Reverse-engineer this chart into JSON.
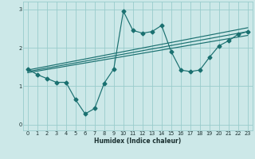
{
  "xlabel": "Humidex (Indice chaleur)",
  "background_color": "#cce8e8",
  "grid_color": "#99cccc",
  "line_color": "#1a7070",
  "xlim": [
    -0.5,
    23.5
  ],
  "ylim": [
    -0.15,
    3.2
  ],
  "xticks": [
    0,
    1,
    2,
    3,
    4,
    5,
    6,
    7,
    8,
    9,
    10,
    11,
    12,
    13,
    14,
    15,
    16,
    17,
    18,
    19,
    20,
    21,
    22,
    23
  ],
  "yticks": [
    0,
    1,
    2,
    3
  ],
  "line1_x": [
    0,
    1,
    2,
    3,
    4,
    5,
    6,
    7,
    8,
    9,
    10,
    11,
    12,
    13,
    14,
    15,
    16,
    17,
    18,
    19,
    20,
    21,
    22,
    23
  ],
  "line1_y": [
    1.45,
    1.3,
    1.2,
    1.1,
    1.1,
    0.65,
    0.28,
    0.42,
    1.08,
    1.45,
    2.95,
    2.45,
    2.38,
    2.42,
    2.58,
    1.9,
    1.42,
    1.38,
    1.42,
    1.75,
    2.05,
    2.18,
    2.35,
    2.42
  ],
  "line2_x": [
    0,
    23
  ],
  "line2_y": [
    1.42,
    2.52
  ],
  "line3_x": [
    0,
    23
  ],
  "line3_y": [
    1.38,
    2.42
  ],
  "line4_x": [
    0,
    23
  ],
  "line4_y": [
    1.35,
    2.32
  ],
  "xlabel_fontsize": 5.5,
  "tick_fontsize": 4.8
}
